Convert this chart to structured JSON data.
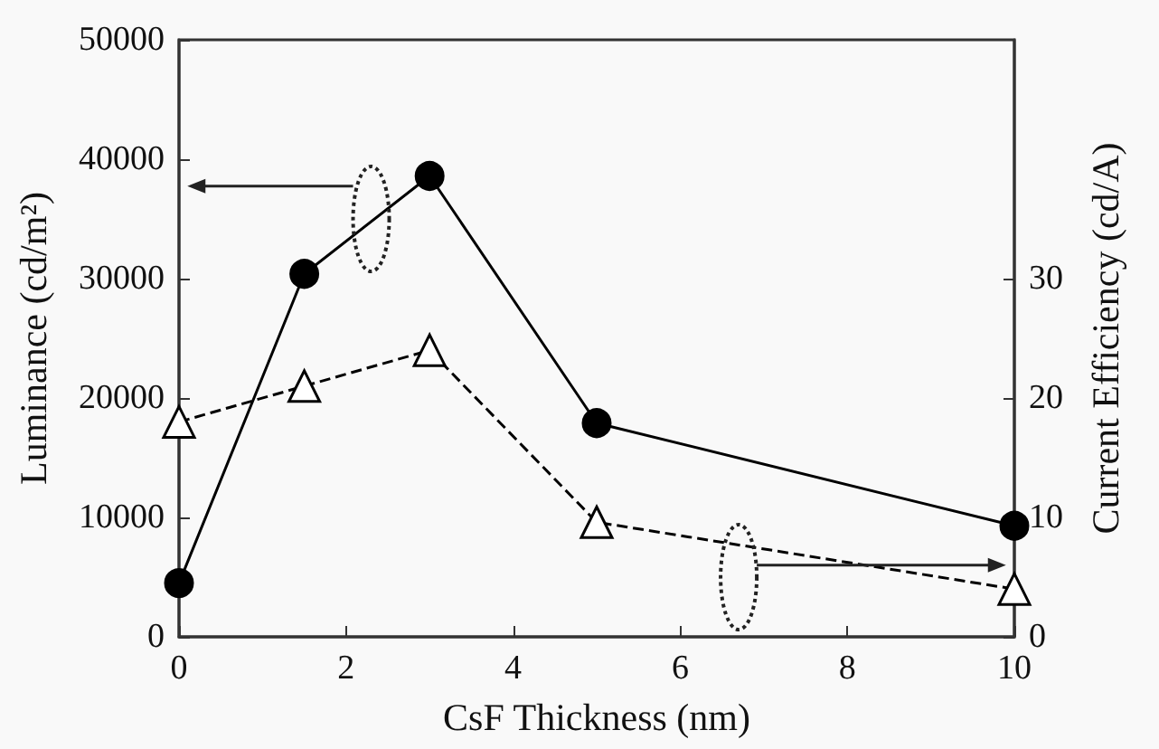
{
  "chart_data": {
    "type": "line",
    "xlabel": "CsF Thickness (nm)",
    "ylabel": "Luminance (cd/m²)",
    "y2label": "Current Efficiency (cd/A)",
    "x": [
      0,
      1.5,
      3,
      5,
      10
    ],
    "series": [
      {
        "color": "#000000",
        "values": [
          4500,
          30400,
          38600,
          17900,
          9300
        ],
        "marker": "circle",
        "line_style": "solid"
      },
      {
        "color": "#000000",
        "values": [
          18,
          21,
          24,
          9.6,
          4
        ],
        "axis": "y2",
        "marker": "triangle",
        "line_style": "dashed"
      }
    ],
    "xlim": [
      0,
      10
    ],
    "xticks": [
      0,
      2,
      4,
      6,
      8,
      10
    ],
    "ylim": [
      0,
      50000
    ],
    "yticks": [
      0,
      10000,
      20000,
      30000,
      40000,
      50000
    ],
    "y2lim": [
      0,
      50
    ],
    "y2ticks": [
      0,
      10,
      20,
      30
    ],
    "grid": false
  }
}
